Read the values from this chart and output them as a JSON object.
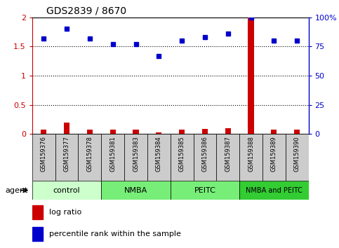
{
  "title": "GDS2839 / 8670",
  "samples": [
    "GSM159376",
    "GSM159377",
    "GSM159378",
    "GSM159381",
    "GSM159383",
    "GSM159384",
    "GSM159385",
    "GSM159386",
    "GSM159387",
    "GSM159388",
    "GSM159389",
    "GSM159390"
  ],
  "log_ratio": [
    0.08,
    0.2,
    0.08,
    0.07,
    0.07,
    0.02,
    0.07,
    0.09,
    0.1,
    2.0,
    0.07,
    0.07
  ],
  "percentile_rank": [
    82,
    90,
    82,
    77,
    77,
    67,
    80,
    83,
    86,
    100,
    80,
    80
  ],
  "ylim_left": [
    0,
    2
  ],
  "ylim_right": [
    0,
    100
  ],
  "yticks_left": [
    0,
    0.5,
    1.0,
    1.5,
    2.0
  ],
  "ytick_labels_left": [
    "0",
    "0.5",
    "1",
    "1.5",
    "2"
  ],
  "yticks_right": [
    0,
    25,
    50,
    75,
    100
  ],
  "ytick_labels_right": [
    "0",
    "25",
    "50",
    "75",
    "100%"
  ],
  "groups": [
    {
      "label": "control",
      "start": 0,
      "end": 2,
      "color": "#ccffcc"
    },
    {
      "label": "NMBA",
      "start": 3,
      "end": 5,
      "color": "#77ee77"
    },
    {
      "label": "PEITC",
      "start": 6,
      "end": 8,
      "color": "#77ee77"
    },
    {
      "label": "NMBA and PEITC",
      "start": 9,
      "end": 11,
      "color": "#33cc33"
    }
  ],
  "bar_color": "#cc0000",
  "dot_color": "#0000cc",
  "axis_color_left": "#cc0000",
  "axis_color_right": "#0000cc",
  "bg_color": "#ffffff",
  "agent_label": "agent"
}
